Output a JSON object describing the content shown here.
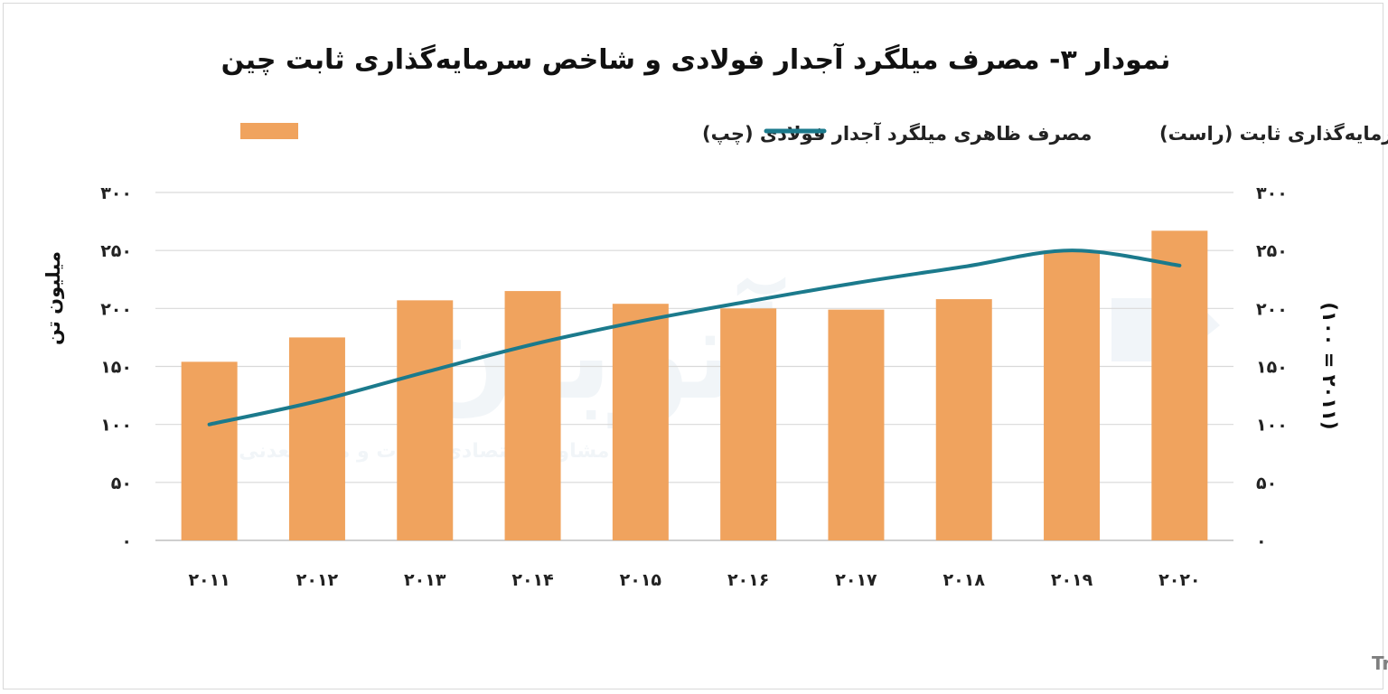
{
  "chart_data": {
    "type": "bar+line",
    "title": "نمودار ۳- مصرف میلگرد آجدار فولادی و شاخص سرمایه‌گذاری ثابت چین",
    "categories": [
      "۲۰۱۱",
      "۲۰۱۲",
      "۲۰۱۳",
      "۲۰۱۴",
      "۲۰۱۵",
      "۲۰۱۶",
      "۲۰۱۷",
      "۲۰۱۸",
      "۲۰۱۹",
      "۲۰۲۰"
    ],
    "series": [
      {
        "name": "مصرف ظاهری میلگرد آجدار فولادی (چپ)",
        "type": "bar",
        "axis": "left",
        "color": "#f0a35e",
        "values": [
          154,
          175,
          207,
          215,
          204,
          200,
          199,
          208,
          250,
          267
        ]
      },
      {
        "name": "شاخص سرمایه‌گذاری ثابت (راست)",
        "type": "line",
        "axis": "right",
        "color": "#1b7a8c",
        "values": [
          100,
          120,
          145,
          169,
          189,
          206,
          222,
          236,
          250,
          237
        ]
      }
    ],
    "y_left": {
      "label": "میلیون تن",
      "ylim": [
        0,
        300
      ],
      "ticks": [
        "۰",
        "۵۰",
        "۱۰۰",
        "۱۵۰",
        "۲۰۰",
        "۲۵۰",
        "۳۰۰"
      ]
    },
    "y_right": {
      "label": "(۲۰۱۱ = ۱۰۰)",
      "ylim": [
        0,
        300
      ],
      "ticks": [
        "۰",
        "۵۰",
        "۱۰۰",
        "۱۵۰",
        "۲۰۰",
        "۲۵۰",
        "۳۰۰"
      ]
    },
    "grid": true,
    "legend_position": "top",
    "source": "منبع: مرکز آمار چین و Trade map"
  },
  "watermark": {
    "logo_text": "آتوبان",
    "tagline": "مرکز مشاوره اقتصادی فلزات و مواد معدنی"
  }
}
